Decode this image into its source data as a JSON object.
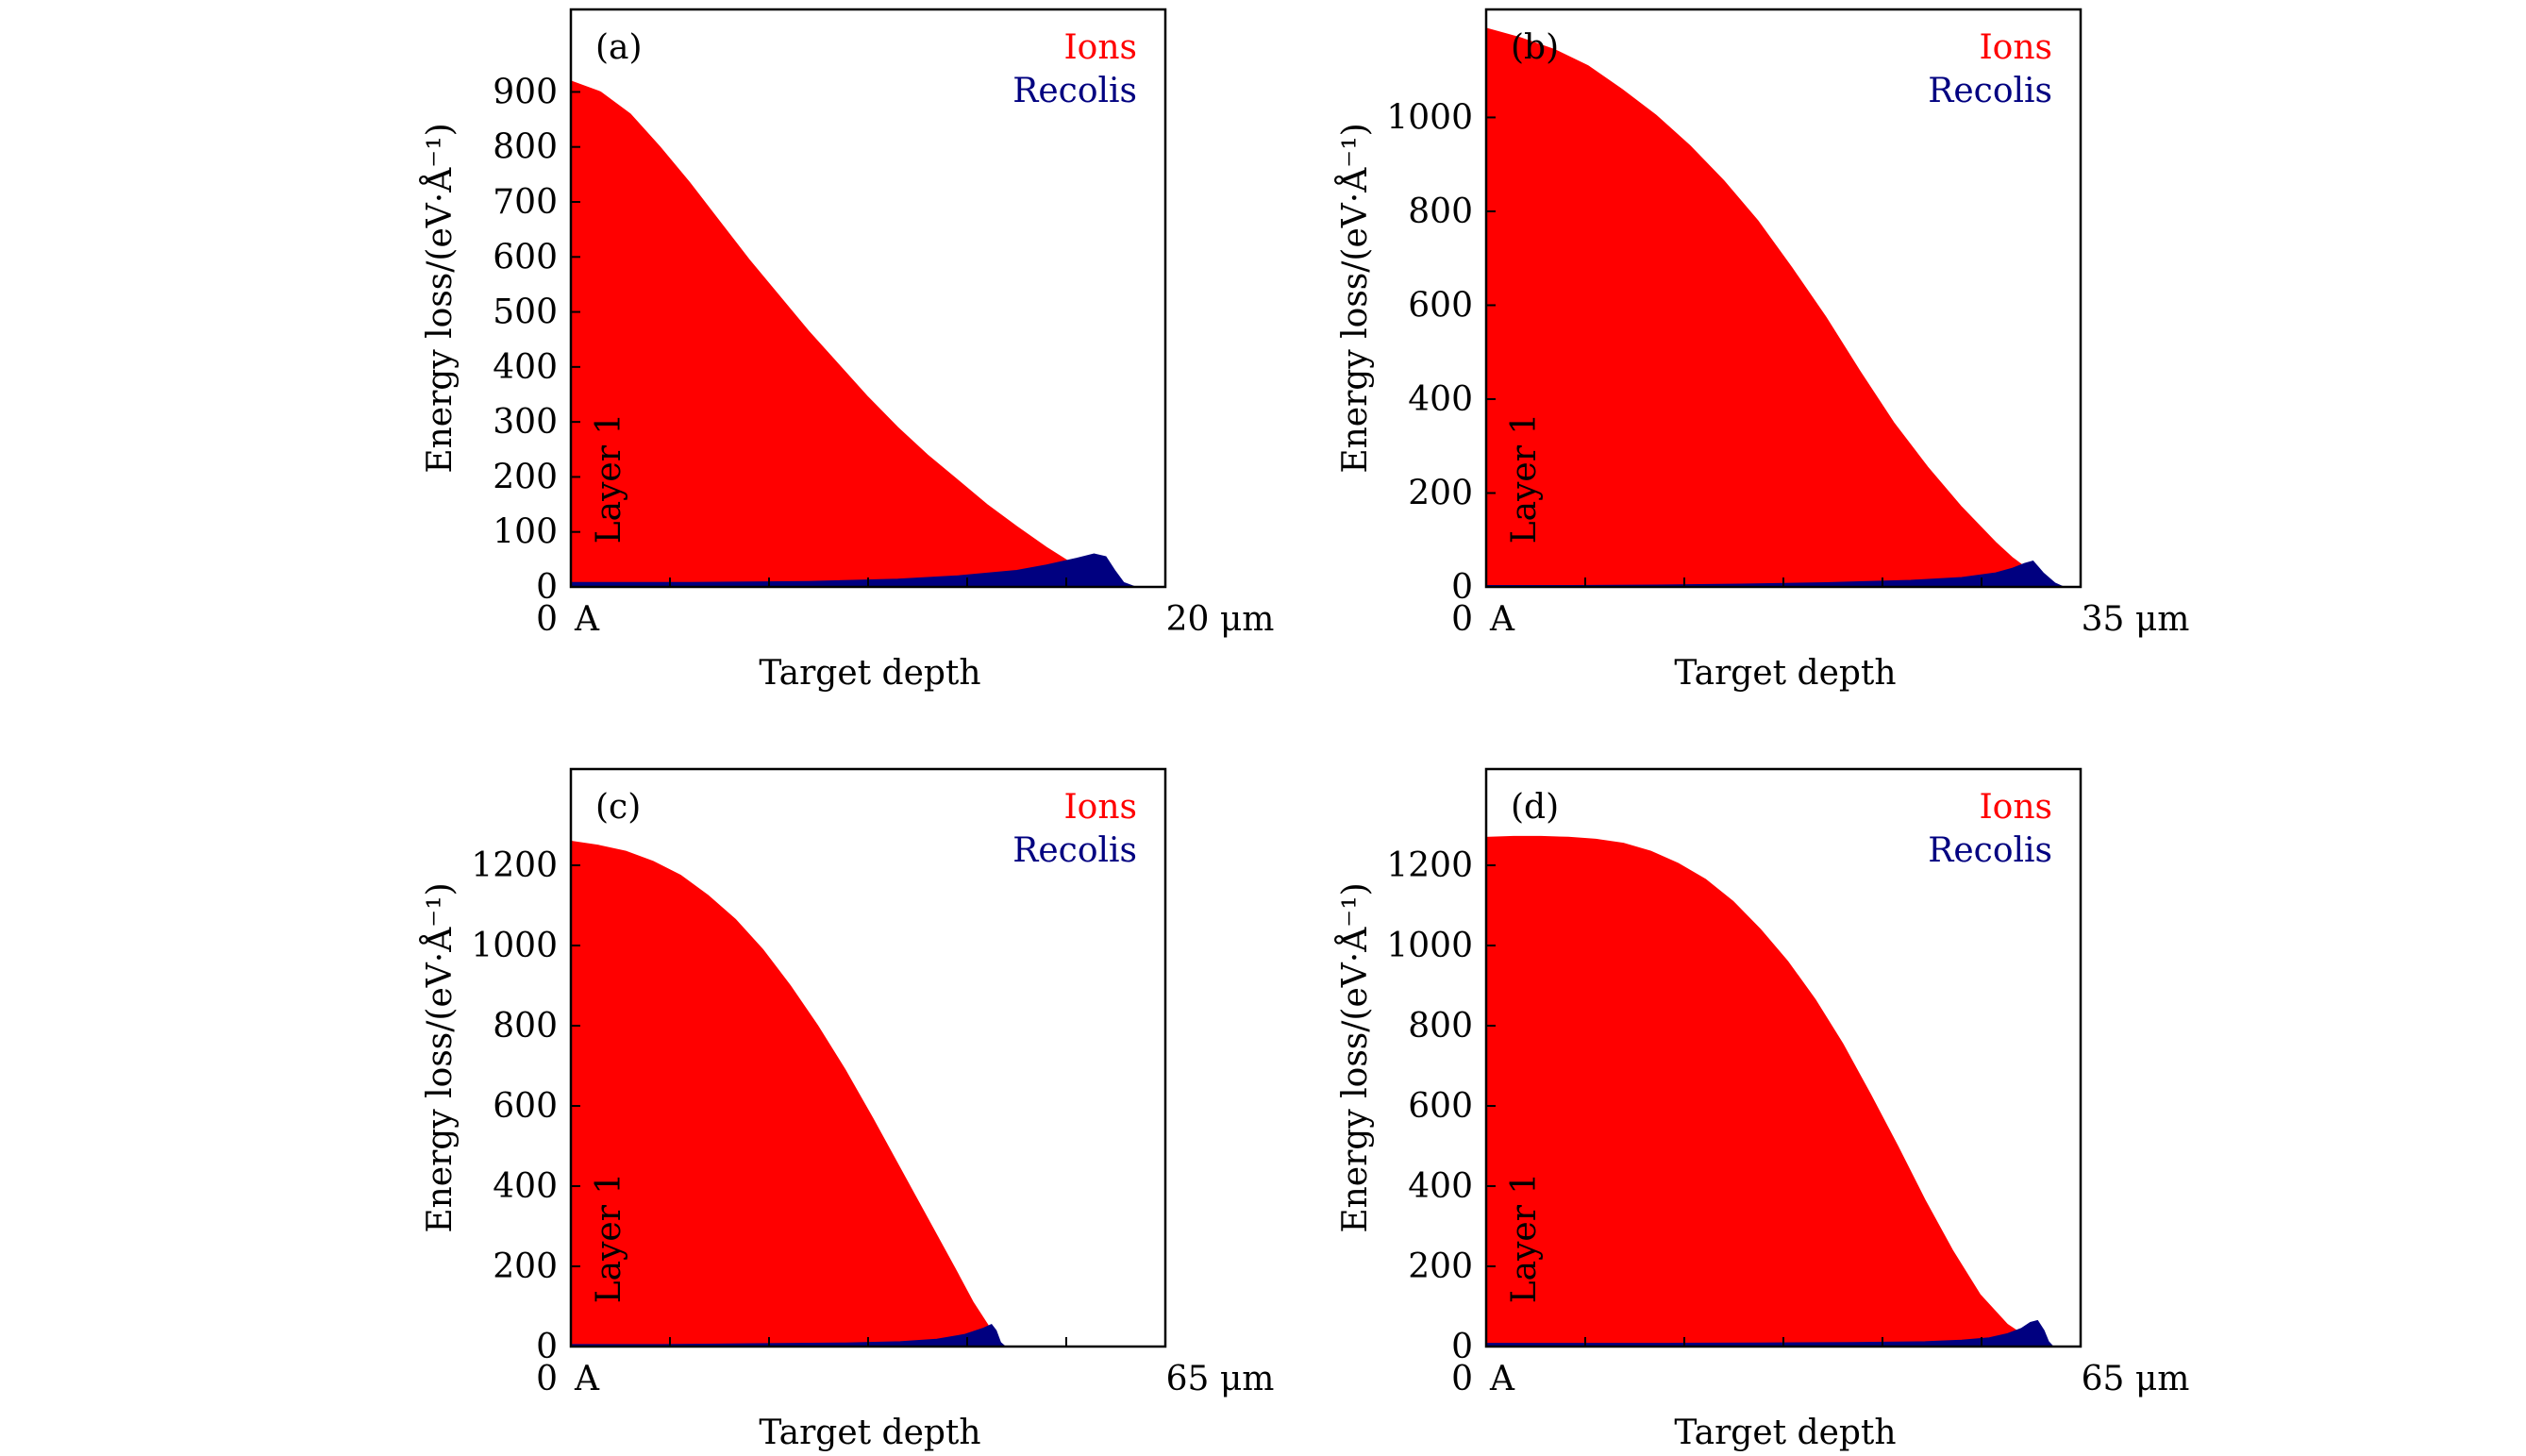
{
  "colors": {
    "ions": "#ff0000",
    "recoils": "#000080",
    "axes": "#000000"
  },
  "chart_data": [
    {
      "type": "area",
      "panel_label": "(a)",
      "title": "",
      "xlabel": "Target depth",
      "ylabel": "Energy loss/(eV·Å⁻¹)",
      "layer_label": "Layer 1",
      "x_start_label": "0",
      "x_marker_label": "A",
      "x_end_label": "20 μm",
      "xlim": [
        0,
        20
      ],
      "ylim": [
        0,
        1050
      ],
      "yticks": [
        0,
        100,
        200,
        300,
        400,
        500,
        600,
        700,
        800,
        900
      ],
      "legend": [
        "Ions",
        "Recolis"
      ],
      "legend_position": "top-right",
      "series": [
        {
          "name": "Ions",
          "x": [
            0,
            1,
            2,
            3,
            4,
            5,
            6,
            7,
            8,
            9,
            10,
            11,
            12,
            13,
            14,
            15,
            16,
            17,
            17.5,
            18,
            18.5,
            19
          ],
          "values": [
            920,
            900,
            860,
            800,
            735,
            665,
            595,
            530,
            465,
            405,
            345,
            290,
            240,
            195,
            150,
            110,
            72,
            38,
            22,
            8,
            2,
            0
          ]
        },
        {
          "name": "Recolis",
          "x": [
            0,
            4,
            8,
            11,
            13,
            15,
            16,
            17,
            17.6,
            18,
            18.3,
            18.6,
            19
          ],
          "values": [
            8,
            8,
            10,
            14,
            20,
            30,
            40,
            52,
            60,
            55,
            30,
            8,
            0
          ]
        }
      ]
    },
    {
      "type": "area",
      "panel_label": "(b)",
      "title": "",
      "xlabel": "Target depth",
      "ylabel": "Energy loss/(eV·Å⁻¹)",
      "layer_label": "Layer 1",
      "x_start_label": "0",
      "x_marker_label": "A",
      "x_end_label": "35 μm",
      "xlim": [
        0,
        35
      ],
      "ylim": [
        0,
        1230
      ],
      "yticks": [
        0,
        200,
        400,
        600,
        800,
        1000
      ],
      "legend": [
        "Ions",
        "Recolis"
      ],
      "legend_position": "top-right",
      "series": [
        {
          "name": "Ions",
          "x": [
            0,
            2,
            4,
            6,
            8,
            10,
            12,
            14,
            16,
            18,
            20,
            22,
            24,
            26,
            28,
            30,
            31,
            32,
            32.5,
            33,
            33.5,
            34
          ],
          "values": [
            1190,
            1170,
            1145,
            1110,
            1060,
            1005,
            940,
            865,
            780,
            680,
            575,
            460,
            350,
            255,
            170,
            95,
            62,
            35,
            20,
            8,
            2,
            0
          ]
        },
        {
          "name": "Recolis",
          "x": [
            0,
            5,
            10,
            15,
            20,
            25,
            28,
            30,
            31,
            31.7,
            32.2,
            32.8,
            33.5,
            34
          ],
          "values": [
            3,
            3,
            4,
            6,
            9,
            14,
            20,
            30,
            40,
            50,
            55,
            30,
            8,
            0
          ]
        }
      ]
    },
    {
      "type": "area",
      "panel_label": "(c)",
      "title": "",
      "xlabel": "Target depth",
      "ylabel": "Energy loss/(eV·Å⁻¹)",
      "layer_label": "Layer 1",
      "x_start_label": "0",
      "x_marker_label": "A",
      "x_end_label": "65 μm",
      "xlim": [
        0,
        65
      ],
      "ylim": [
        0,
        1440
      ],
      "yticks": [
        0,
        200,
        400,
        600,
        800,
        1000,
        1200
      ],
      "legend": [
        "Ions",
        "Recolis"
      ],
      "legend_position": "top-right",
      "series": [
        {
          "name": "Ions",
          "x": [
            0,
            3,
            6,
            9,
            12,
            15,
            18,
            21,
            24,
            27,
            30,
            33,
            36,
            39,
            42,
            44,
            46,
            47,
            47.5
          ],
          "values": [
            1260,
            1250,
            1235,
            1210,
            1175,
            1125,
            1065,
            990,
            900,
            800,
            690,
            570,
            445,
            320,
            195,
            110,
            40,
            8,
            0
          ]
        },
        {
          "name": "Recolis",
          "x": [
            0,
            10,
            20,
            30,
            36,
            40,
            43,
            45,
            46,
            46.5,
            47,
            47.5
          ],
          "values": [
            5,
            5,
            7,
            9,
            12,
            18,
            30,
            45,
            55,
            40,
            10,
            0
          ]
        }
      ]
    },
    {
      "type": "area",
      "panel_label": "(d)",
      "title": "",
      "xlabel": "Target depth",
      "ylabel": "Energy loss/(eV·Å⁻¹)",
      "layer_label": "Layer 1",
      "x_start_label": "0",
      "x_marker_label": "A",
      "x_end_label": "65 μm",
      "xlim": [
        0,
        65
      ],
      "ylim": [
        0,
        1440
      ],
      "yticks": [
        0,
        200,
        400,
        600,
        800,
        1000,
        1200
      ],
      "legend": [
        "Ions",
        "Recolis"
      ],
      "legend_position": "top-right",
      "series": [
        {
          "name": "Ions",
          "x": [
            0,
            3,
            6,
            9,
            12,
            15,
            18,
            21,
            24,
            27,
            30,
            33,
            36,
            39,
            42,
            45,
            48,
            51,
            54,
            57,
            59,
            60,
            61,
            62
          ],
          "values": [
            1270,
            1272,
            1272,
            1270,
            1265,
            1255,
            1235,
            1205,
            1165,
            1110,
            1040,
            960,
            865,
            755,
            630,
            500,
            365,
            240,
            130,
            55,
            25,
            12,
            4,
            0
          ]
        },
        {
          "name": "Recolis",
          "x": [
            0,
            10,
            20,
            30,
            40,
            48,
            52,
            55,
            57,
            58.5,
            59.5,
            60.3,
            61,
            61.5,
            62
          ],
          "values": [
            8,
            8,
            8,
            9,
            10,
            12,
            16,
            22,
            32,
            45,
            60,
            65,
            40,
            12,
            0
          ]
        }
      ]
    }
  ]
}
